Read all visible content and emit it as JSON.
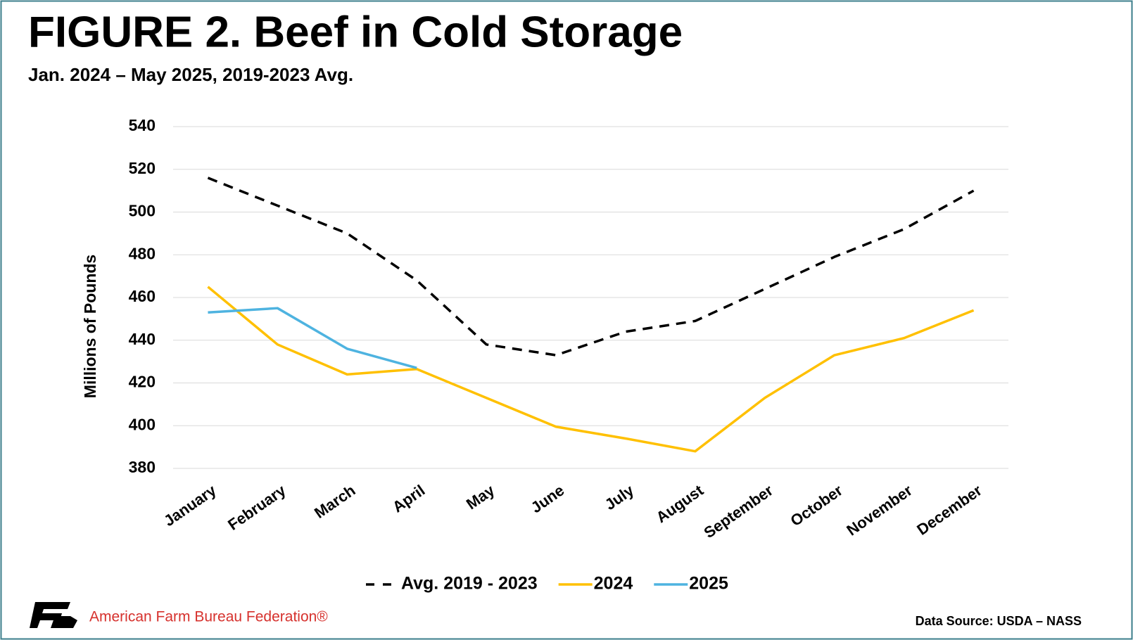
{
  "chart_data": {
    "type": "line",
    "title": "FIGURE 2. Beef in Cold Storage",
    "subtitle": "Jan. 2024 – May 2025, 2019-2023 Avg.",
    "y_label": "Millions of Pounds",
    "categories": [
      "January",
      "February",
      "March",
      "April",
      "May",
      "June",
      "July",
      "August",
      "September",
      "October",
      "November",
      "December"
    ],
    "series": [
      {
        "name": "Avg. 2019 - 2023",
        "color": "#000000",
        "dashed": true,
        "values": [
          516,
          503,
          490,
          468,
          438,
          433,
          444,
          449,
          464,
          479,
          492,
          510
        ]
      },
      {
        "name": "2024",
        "color": "#ffc000",
        "dashed": false,
        "values": [
          465,
          438,
          424,
          426.5,
          413,
          399.5,
          394,
          388,
          413,
          433,
          441,
          454
        ]
      },
      {
        "name": "2025",
        "color": "#4eb3e0",
        "dashed": false,
        "values": [
          453,
          455,
          436,
          427,
          null,
          null,
          null,
          null,
          null,
          null,
          null,
          null
        ]
      }
    ],
    "ylim": [
      380,
      540
    ],
    "yticks": [
      380,
      400,
      420,
      440,
      460,
      480,
      500,
      520,
      540
    ],
    "grid": true,
    "legend": "bottom",
    "organization": "American Farm Bureau Federation®",
    "source": "Data Source:  USDA – NASS"
  }
}
